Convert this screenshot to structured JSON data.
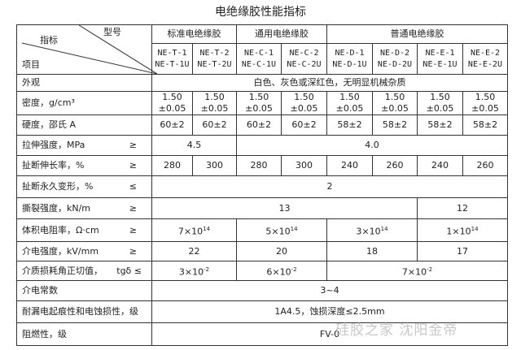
{
  "title": "电绝缘胶性能指标",
  "header": {
    "corner_model": "型号",
    "corner_indicator": "指标",
    "corner_item": "项目",
    "groups": [
      "标准电绝缘胶",
      "通用电绝缘胶",
      "普通电绝缘胶"
    ],
    "models": [
      [
        "NE-T-1",
        "NE-T-1U"
      ],
      [
        "NE-T-2",
        "NE-T-2U"
      ],
      [
        "NE-C-1",
        "NE-C-1U"
      ],
      [
        "NE-C-2",
        "NE-C-2U"
      ],
      [
        "NE-D-1",
        "NE-D-1U"
      ],
      [
        "NE-D-2",
        "NE-D-2U"
      ],
      [
        "NE-E-1",
        "NE-E-1U"
      ],
      [
        "NE-E-2",
        "NE-E-2U"
      ]
    ]
  },
  "rows": {
    "appearance": {
      "label": "外观",
      "value": "白色、灰色或深红色，无明显机械杂质"
    },
    "density": {
      "label": "密度，g/cm³",
      "values": [
        "1.50 ±0.05",
        "1.50 ±0.05",
        "1.50 ±0.05",
        "1.50 ±0.05",
        "1.50 ±0.05",
        "1.50 ±0.05",
        "1.50 ±0.05",
        "1.50 ±0.05"
      ]
    },
    "hardness": {
      "label": "硬度，邵氏 A",
      "values": [
        "60±2",
        "60±2",
        "60±2",
        "60±2",
        "58±2",
        "58±2",
        "58±2",
        "58±2"
      ]
    },
    "tensile": {
      "label": "拉伸强度，MPa",
      "op": "≥",
      "values": [
        "4.5",
        "4.0"
      ]
    },
    "elongation": {
      "label": "扯断伸长率，%",
      "op": "≥",
      "values": [
        "280",
        "300",
        "280",
        "300",
        "240",
        "260",
        "240",
        "260"
      ]
    },
    "set": {
      "label": "扯断永久变形，%",
      "op": "≤",
      "value": "2"
    },
    "tear": {
      "label": "撕裂强度，kN/m",
      "op": "≥",
      "values": [
        "13",
        "12"
      ]
    },
    "resistivity": {
      "label": "体积电阻率，Ω·cm",
      "op": "≥",
      "values": [
        {
          "base": "7×10",
          "exp": "14"
        },
        {
          "base": "5×10",
          "exp": "14"
        },
        {
          "base": "3×10",
          "exp": "14"
        },
        {
          "base": "1×10",
          "exp": "14"
        }
      ]
    },
    "dielectric_strength": {
      "label": "介电强度，kV/mm",
      "op": "≥",
      "values": [
        "22",
        "20",
        "18",
        "17"
      ]
    },
    "loss": {
      "label": "介质损耗角正切值，",
      "op": "tgδ ≤",
      "values": [
        {
          "base": "3×10",
          "exp": "-2"
        },
        {
          "base": "6×10",
          "exp": "-2"
        },
        {
          "base": "7×10",
          "exp": "-2"
        }
      ]
    },
    "constant": {
      "label": "介电常数",
      "value": "3~4"
    },
    "tracking": {
      "label": "耐漏电起痕性和电蚀损性，级",
      "value": "1A4.5，蚀损深度≤2.5mm"
    },
    "flame": {
      "label": "阻燃性，级",
      "value": "FV-0"
    }
  },
  "watermark": "硅胶之家  沈阳金帝"
}
